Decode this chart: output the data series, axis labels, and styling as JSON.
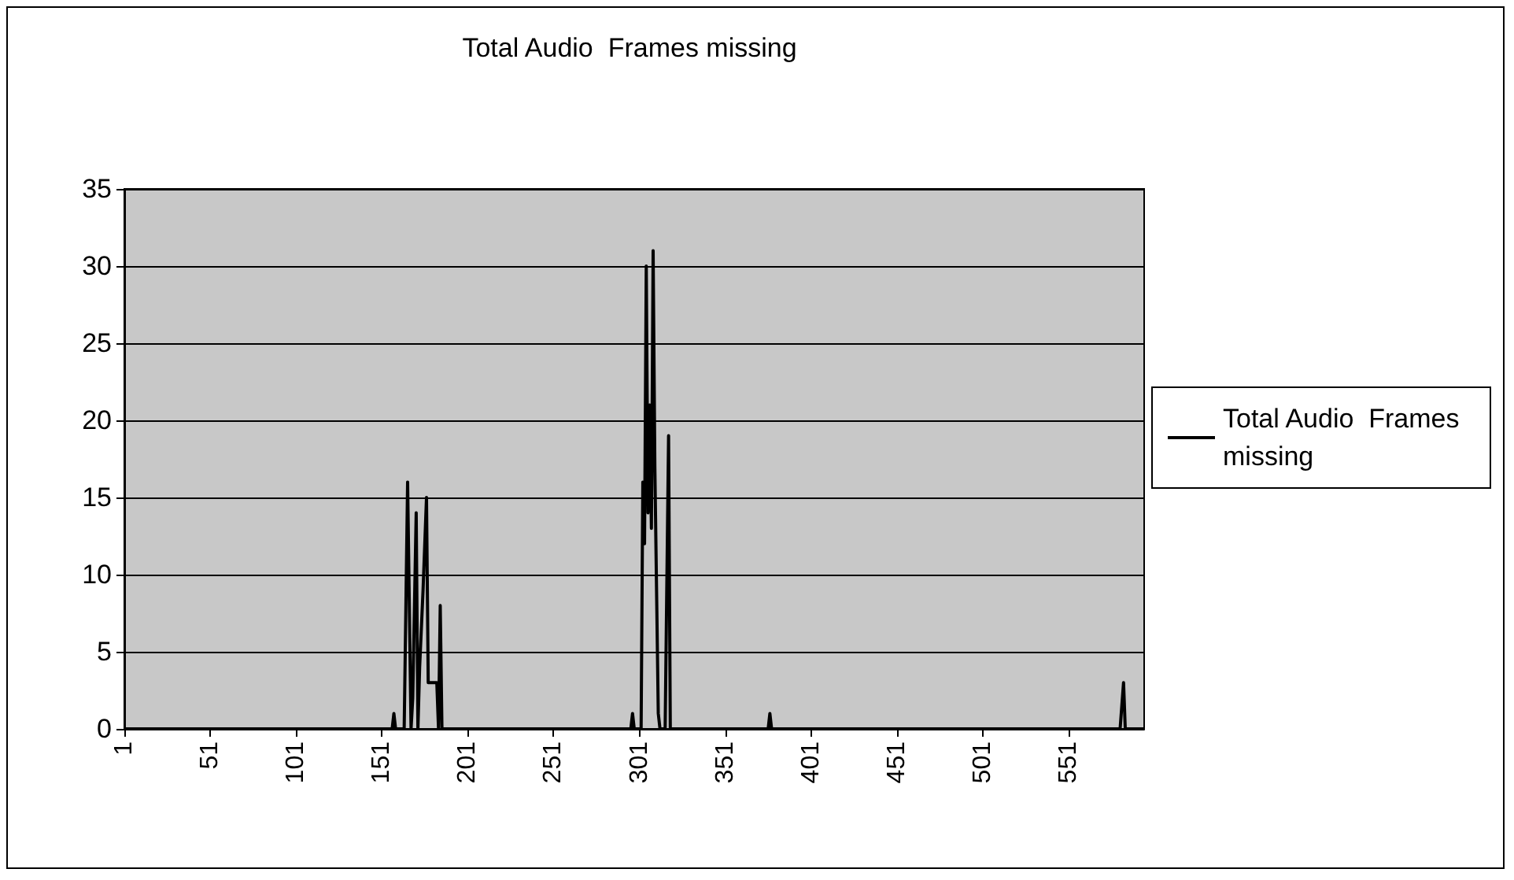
{
  "chart_data": {
    "type": "line",
    "title": "Total Audio  Frames missing",
    "x": [
      1,
      157,
      158,
      159,
      164,
      166,
      168,
      169,
      171,
      172,
      173,
      175,
      177,
      178,
      183,
      184,
      185,
      186,
      296,
      297,
      298,
      302,
      303,
      304,
      305,
      306,
      307,
      308,
      309,
      310,
      312,
      313,
      316,
      318,
      319,
      376,
      377,
      378,
      581,
      583,
      584,
      595
    ],
    "series": [
      {
        "name": "Total Audio  Frames missing",
        "color": "#000000",
        "values": [
          0,
          0,
          1,
          0,
          0,
          16,
          0,
          2,
          14,
          0,
          4,
          9,
          15,
          3,
          3,
          0,
          8,
          0,
          0,
          1,
          0,
          0,
          16,
          12,
          30,
          14,
          21,
          13,
          31,
          17,
          1,
          0,
          0,
          19,
          0,
          0,
          1,
          0,
          0,
          3,
          0,
          0
        ]
      }
    ],
    "xlim": [
      1,
      595
    ],
    "xticks": [
      1,
      51,
      101,
      151,
      201,
      251,
      301,
      351,
      401,
      451,
      501,
      551
    ],
    "ylim": [
      0,
      35
    ],
    "yticks": [
      0,
      5,
      10,
      15,
      20,
      25,
      30,
      35
    ],
    "grid": "y",
    "legend": "right",
    "marker": "none",
    "line_style": "solid"
  }
}
